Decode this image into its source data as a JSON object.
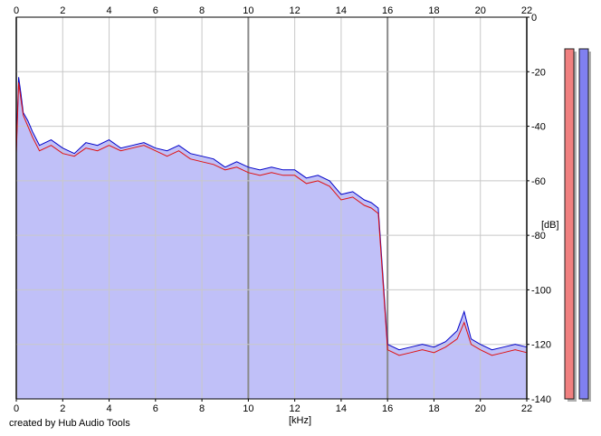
{
  "chart_data": {
    "type": "area",
    "title": "",
    "xlabel": "[kHz]",
    "ylabel": "[dB]",
    "xlim": [
      0,
      22
    ],
    "ylim": [
      -140,
      0
    ],
    "x_ticks": [
      "0",
      "2",
      "4",
      "6",
      "8",
      "10",
      "12",
      "14",
      "16",
      "18",
      "20",
      "22"
    ],
    "y_ticks": [
      "0",
      "-20",
      "-40",
      "-60",
      "-80",
      "-100",
      "-120",
      "-140"
    ],
    "grid": true,
    "series": [
      {
        "color": "#0000c8",
        "fill": "#c0c0f8",
        "x": [
          0,
          0.1,
          0.2,
          0.3,
          0.5,
          0.7,
          1,
          1.5,
          2,
          2.5,
          3,
          3.5,
          4,
          4.5,
          5,
          5.5,
          6,
          6.5,
          7,
          7.5,
          8,
          8.5,
          9,
          9.5,
          10,
          10.5,
          11,
          11.5,
          12,
          12.5,
          13,
          13.5,
          14,
          14.5,
          15,
          15.3,
          15.6,
          15.8,
          16,
          16.5,
          17,
          17.5,
          18,
          18.5,
          19,
          19.3,
          19.6,
          20,
          20.5,
          21,
          21.5,
          22
        ],
        "values": [
          -48,
          -22,
          -28,
          -35,
          -38,
          -42,
          -47,
          -45,
          -48,
          -50,
          -46,
          -47,
          -45,
          -48,
          -47,
          -46,
          -48,
          -49,
          -47,
          -50,
          -51,
          -52,
          -55,
          -53,
          -55,
          -56,
          -55,
          -56,
          -56,
          -59,
          -58,
          -60,
          -65,
          -64,
          -67,
          -68,
          -70,
          -95,
          -120,
          -122,
          -121,
          -120,
          -121,
          -119,
          -115,
          -108,
          -118,
          -120,
          -122,
          -121,
          -120,
          -121
        ]
      },
      {
        "color": "#e01010",
        "fill": "none",
        "x": [
          0,
          0.1,
          0.2,
          0.3,
          0.5,
          0.7,
          1,
          1.5,
          2,
          2.5,
          3,
          3.5,
          4,
          4.5,
          5,
          5.5,
          6,
          6.5,
          7,
          7.5,
          8,
          8.5,
          9,
          9.5,
          10,
          10.5,
          11,
          11.5,
          12,
          12.5,
          13,
          13.5,
          14,
          14.5,
          15,
          15.3,
          15.6,
          15.8,
          16,
          16.5,
          17,
          17.5,
          18,
          18.5,
          19,
          19.3,
          19.6,
          20,
          20.5,
          21,
          21.5,
          22
        ],
        "values": [
          -50,
          -24,
          -30,
          -36,
          -40,
          -44,
          -49,
          -47,
          -50,
          -51,
          -48,
          -49,
          -47,
          -49,
          -48,
          -47,
          -49,
          -51,
          -49,
          -52,
          -53,
          -54,
          -56,
          -55,
          -57,
          -58,
          -57,
          -58,
          -58,
          -61,
          -60,
          -62,
          -67,
          -66,
          -69,
          -70,
          -72,
          -97,
          -122,
          -124,
          -123,
          -122,
          -123,
          -121,
          -118,
          -112,
          -120,
          -122,
          -124,
          -123,
          -122,
          -123
        ]
      }
    ]
  },
  "meters": [
    {
      "color": "#f08080",
      "level": 1.0
    },
    {
      "color": "#8080f0",
      "level": 1.0
    }
  ],
  "footer": {
    "credit": "created by Hub Audio Tools"
  }
}
